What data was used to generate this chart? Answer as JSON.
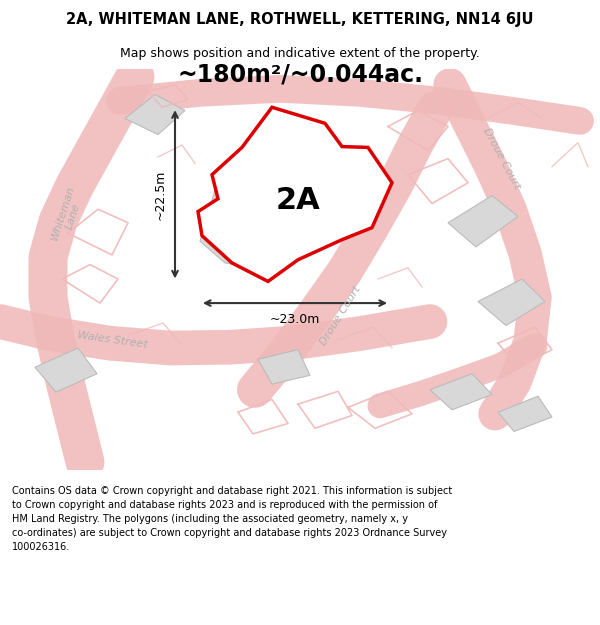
{
  "title_line1": "2A, WHITEMAN LANE, ROTHWELL, KETTERING, NN14 6JU",
  "title_line2": "Map shows position and indicative extent of the property.",
  "area_label": "~180m²/~0.044ac.",
  "plot_label": "2A",
  "dim_horizontal": "~23.0m",
  "dim_vertical": "~22.5m",
  "footer_lines": [
    "Contains OS data © Crown copyright and database right 2021. This information is subject",
    "to Crown copyright and database rights 2023 and is reproduced with the permission of",
    "HM Land Registry. The polygons (including the associated geometry, namely x, y",
    "co-ordinates) are subject to Crown copyright and database rights 2023 Ordnance Survey",
    "100026316."
  ],
  "bg_color": "#ffffff",
  "map_bg": "#f5f5f5",
  "road_color_light": "#f0b8b8",
  "plot_fill": "#ffffff",
  "plot_edge": "#dd0000",
  "building_fill": "#d8d8d8",
  "building_edge": "#bbbbbb",
  "street_label_color": "#b0b0b0",
  "dim_color": "#333333",
  "title_color": "#000000",
  "footer_color": "#000000"
}
